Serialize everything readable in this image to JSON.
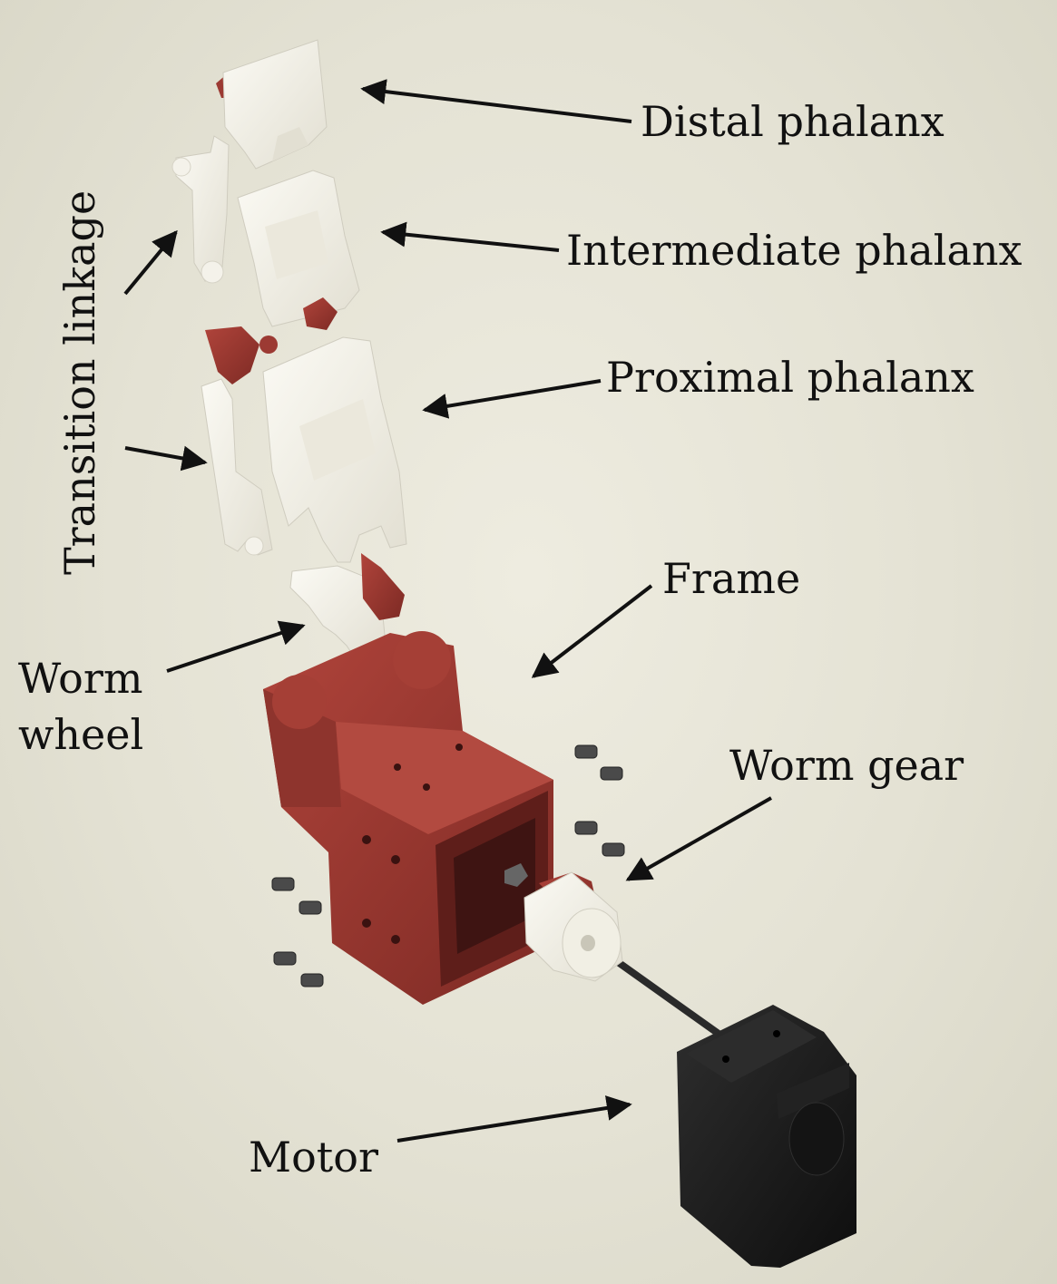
{
  "labels": {
    "distal": "Distal phalanx",
    "intermediate": "Intermediate phalanx",
    "proximal": "Proximal phalanx",
    "transition": "Transition linkage",
    "frame": "Frame",
    "worm_wheel_line1": "Worm",
    "worm_wheel_line2": "wheel",
    "worm_gear": "Worm gear",
    "motor": "Motor"
  },
  "colors": {
    "background": "#e6e4d6",
    "part_white": "#f3f1e8",
    "part_red": "#9c3a33",
    "motor_black": "#1a1a1a",
    "arrow": "#111111"
  }
}
